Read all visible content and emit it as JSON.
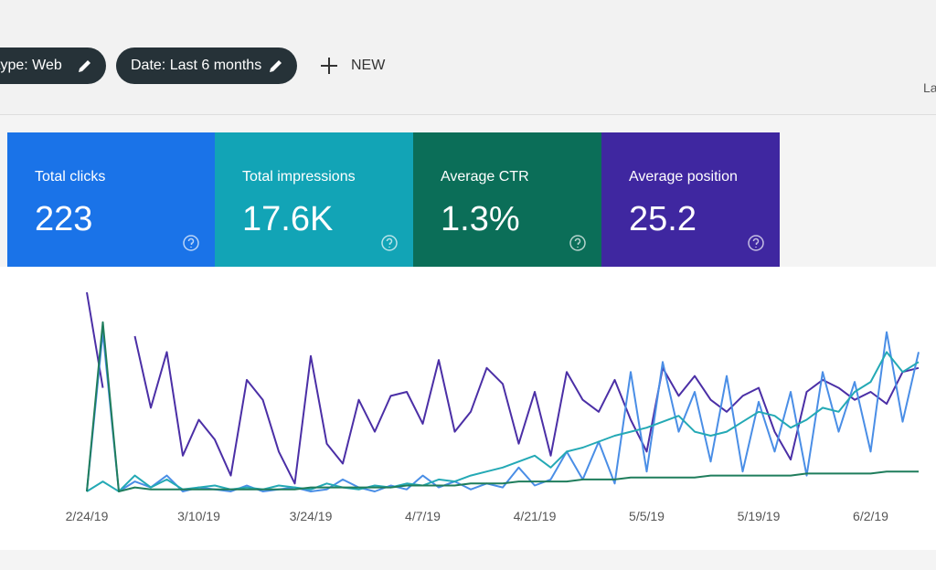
{
  "toolbar": {
    "chips": [
      "type: Web",
      "Date: Last 6 months"
    ],
    "new": "NEW",
    "cut_label": "La"
  },
  "cards": [
    {
      "label": "Total clicks",
      "value": "223",
      "color": "#1a73e8"
    },
    {
      "label": "Total impressions",
      "value": "17.6K",
      "color": "#12a4b6"
    },
    {
      "label": "Average CTR",
      "value": "1.3%",
      "color": "#0b6e58"
    },
    {
      "label": "Average position",
      "value": "25.2",
      "color": "#3f27a0"
    }
  ],
  "chart": {
    "type": "line",
    "categories": [
      "2/24/19",
      null,
      null,
      null,
      null,
      null,
      null,
      "3/10/19",
      null,
      null,
      null,
      null,
      null,
      null,
      "3/24/19",
      null,
      null,
      null,
      null,
      null,
      null,
      "4/7/19",
      null,
      null,
      null,
      null,
      null,
      null,
      "4/21/19",
      null,
      null,
      null,
      null,
      null,
      null,
      "5/5/19",
      null,
      null,
      null,
      null,
      null,
      null,
      "5/19/19",
      null,
      null,
      null,
      null,
      null,
      null,
      "6/2/19",
      null,
      null,
      null
    ],
    "ylim": [
      0,
      100
    ],
    "series": [
      {
        "color": "#4b2fa6",
        "values": [
          100,
          52,
          null,
          78,
          42,
          70,
          18,
          36,
          26,
          8,
          56,
          46,
          20,
          4,
          68,
          24,
          14,
          46,
          30,
          48,
          50,
          34,
          66,
          30,
          40,
          62,
          54,
          24,
          50,
          18,
          60,
          46,
          40,
          56,
          36,
          20,
          62,
          48,
          58,
          46,
          40,
          48,
          52,
          30,
          16,
          50,
          56,
          52,
          46,
          50,
          44,
          60,
          62
        ]
      },
      {
        "color": "#4a8ee6",
        "values": [
          0,
          80,
          0,
          5,
          2,
          8,
          0,
          2,
          1,
          0,
          3,
          0,
          1,
          2,
          0,
          1,
          6,
          2,
          0,
          3,
          1,
          8,
          2,
          5,
          1,
          4,
          2,
          12,
          3,
          6,
          20,
          6,
          25,
          4,
          60,
          10,
          65,
          30,
          50,
          15,
          58,
          10,
          45,
          20,
          50,
          8,
          60,
          30,
          55,
          20,
          80,
          35,
          70
        ]
      },
      {
        "color": "#24a9b5",
        "values": [
          0,
          5,
          0,
          8,
          2,
          6,
          1,
          2,
          3,
          1,
          2,
          1,
          3,
          2,
          1,
          4,
          2,
          1,
          3,
          2,
          4,
          3,
          6,
          5,
          8,
          10,
          12,
          15,
          18,
          12,
          20,
          22,
          25,
          28,
          30,
          32,
          35,
          38,
          30,
          28,
          30,
          35,
          40,
          38,
          32,
          36,
          42,
          40,
          50,
          55,
          70,
          60,
          65
        ]
      },
      {
        "color": "#1f7d5c",
        "values": [
          0,
          85,
          0,
          2,
          1,
          1,
          1,
          1,
          1,
          1,
          1,
          1,
          1,
          1,
          2,
          2,
          2,
          2,
          2,
          2,
          3,
          3,
          3,
          3,
          4,
          4,
          4,
          5,
          5,
          5,
          5,
          6,
          6,
          6,
          7,
          7,
          7,
          7,
          7,
          8,
          8,
          8,
          8,
          8,
          8,
          9,
          9,
          9,
          9,
          9,
          10,
          10,
          10
        ]
      }
    ]
  }
}
